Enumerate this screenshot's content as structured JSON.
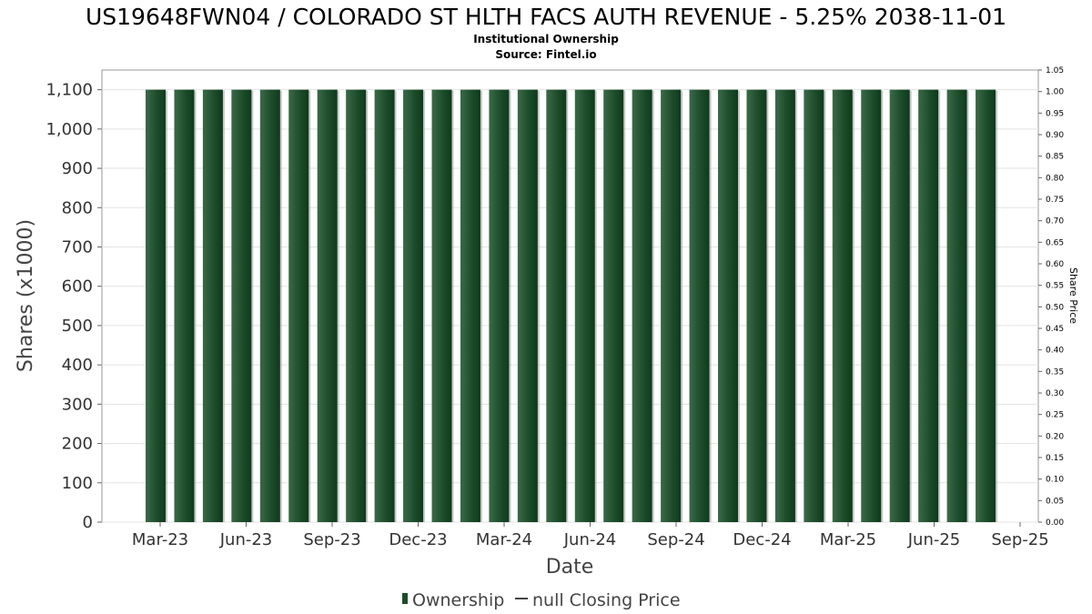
{
  "chart_data": {
    "type": "bar",
    "title": "US19648FWN04 / COLORADO ST HLTH FACS AUTH REVENUE - 5.25% 2038-11-01",
    "subtitle": "Institutional Ownership",
    "source": "Source: Fintel.io",
    "xlabel": "Date",
    "ylabel": "Shares (x1000)",
    "y2label": "Share Price",
    "ylim": [
      0,
      1150
    ],
    "y2lim": [
      0,
      1.05
    ],
    "yticks": [
      "0",
      "100",
      "200",
      "300",
      "400",
      "500",
      "600",
      "700",
      "800",
      "900",
      "1,000",
      "1,100"
    ],
    "y2ticks": [
      "0.00",
      "0.05",
      "0.10",
      "0.15",
      "0.20",
      "0.25",
      "0.30",
      "0.35",
      "0.40",
      "0.45",
      "0.50",
      "0.55",
      "0.60",
      "0.65",
      "0.70",
      "0.75",
      "0.80",
      "0.85",
      "0.90",
      "0.95",
      "1.00",
      "1.05"
    ],
    "xticks": [
      "Mar-23",
      "Jun-23",
      "Sep-23",
      "Dec-23",
      "Mar-24",
      "Jun-24",
      "Sep-24",
      "Dec-24",
      "Mar-25",
      "Jun-25",
      "Sep-25"
    ],
    "grid": true,
    "legend_position": "bottom",
    "series": [
      {
        "name": "Ownership",
        "color": "#1d4d2b",
        "values": [
          1100,
          1100,
          1100,
          1100,
          1100,
          1100,
          1100,
          1100,
          1100,
          1100,
          1100,
          1100,
          1100,
          1100,
          1100,
          1100,
          1100,
          1100,
          1100,
          1100,
          1100,
          1100,
          1100,
          1100,
          1100,
          1100,
          1100,
          1100,
          1100,
          1100
        ]
      },
      {
        "name": "null Closing Price",
        "color": "#444444",
        "values": []
      }
    ]
  }
}
